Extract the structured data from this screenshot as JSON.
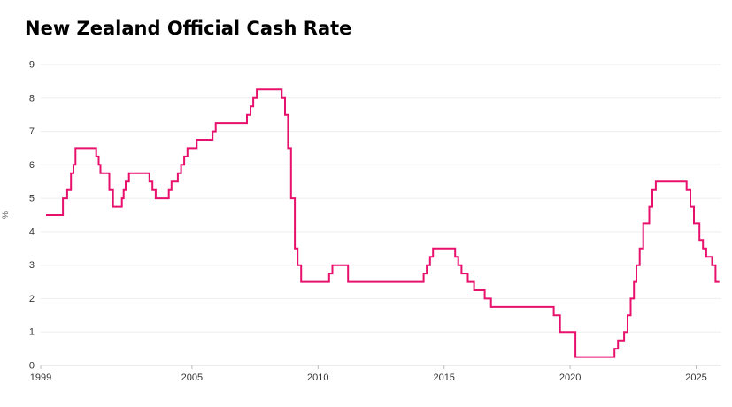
{
  "title": "New Zealand Official Cash Rate",
  "chart_data": {
    "type": "line",
    "step": true,
    "title": "New Zealand Official Cash Rate",
    "xlabel": "",
    "ylabel": "%",
    "xlim": [
      1999,
      2026
    ],
    "ylim": [
      0,
      9
    ],
    "xticks": [
      1999,
      2005,
      2010,
      2015,
      2020,
      2025
    ],
    "yticks": [
      0,
      1,
      2,
      3,
      4,
      5,
      6,
      7,
      8,
      9
    ],
    "grid": true,
    "legend": "none",
    "line_color": "#e7106c",
    "grid_color": "#ededed",
    "axis_color": "#d9d9d9",
    "series": [
      {
        "name": "Official Cash Rate (%)",
        "points": [
          [
            1999.21,
            4.5
          ],
          [
            1999.88,
            5.0
          ],
          [
            2000.05,
            5.25
          ],
          [
            2000.2,
            5.75
          ],
          [
            2000.3,
            6.0
          ],
          [
            2000.38,
            6.5
          ],
          [
            2001.2,
            6.25
          ],
          [
            2001.3,
            6.0
          ],
          [
            2001.37,
            5.75
          ],
          [
            2001.72,
            5.25
          ],
          [
            2001.87,
            4.75
          ],
          [
            2002.22,
            5.0
          ],
          [
            2002.29,
            5.25
          ],
          [
            2002.37,
            5.5
          ],
          [
            2002.5,
            5.75
          ],
          [
            2003.31,
            5.5
          ],
          [
            2003.43,
            5.25
          ],
          [
            2003.56,
            5.0
          ],
          [
            2004.08,
            5.25
          ],
          [
            2004.19,
            5.5
          ],
          [
            2004.44,
            5.75
          ],
          [
            2004.57,
            6.0
          ],
          [
            2004.69,
            6.25
          ],
          [
            2004.82,
            6.5
          ],
          [
            2005.19,
            6.75
          ],
          [
            2005.82,
            7.0
          ],
          [
            2005.94,
            7.25
          ],
          [
            2007.18,
            7.5
          ],
          [
            2007.32,
            7.75
          ],
          [
            2007.43,
            8.0
          ],
          [
            2007.57,
            8.25
          ],
          [
            2008.56,
            8.0
          ],
          [
            2008.69,
            7.5
          ],
          [
            2008.81,
            6.5
          ],
          [
            2008.93,
            5.0
          ],
          [
            2009.08,
            3.5
          ],
          [
            2009.19,
            3.0
          ],
          [
            2009.33,
            2.5
          ],
          [
            2010.44,
            2.75
          ],
          [
            2010.57,
            3.0
          ],
          [
            2011.19,
            2.5
          ],
          [
            2014.19,
            2.75
          ],
          [
            2014.31,
            3.0
          ],
          [
            2014.44,
            3.25
          ],
          [
            2014.56,
            3.5
          ],
          [
            2015.44,
            3.25
          ],
          [
            2015.56,
            3.0
          ],
          [
            2015.69,
            2.75
          ],
          [
            2015.94,
            2.5
          ],
          [
            2016.19,
            2.25
          ],
          [
            2016.61,
            2.0
          ],
          [
            2016.86,
            1.75
          ],
          [
            2019.35,
            1.5
          ],
          [
            2019.6,
            1.0
          ],
          [
            2020.21,
            0.25
          ],
          [
            2021.76,
            0.5
          ],
          [
            2021.9,
            0.75
          ],
          [
            2022.14,
            1.0
          ],
          [
            2022.28,
            1.5
          ],
          [
            2022.4,
            2.0
          ],
          [
            2022.53,
            2.5
          ],
          [
            2022.63,
            3.0
          ],
          [
            2022.76,
            3.5
          ],
          [
            2022.9,
            4.25
          ],
          [
            2023.14,
            4.75
          ],
          [
            2023.26,
            5.25
          ],
          [
            2023.4,
            5.5
          ],
          [
            2024.62,
            5.25
          ],
          [
            2024.77,
            4.75
          ],
          [
            2024.91,
            4.25
          ],
          [
            2025.13,
            3.75
          ],
          [
            2025.27,
            3.5
          ],
          [
            2025.4,
            3.25
          ],
          [
            2025.63,
            3.0
          ],
          [
            2025.77,
            2.5
          ],
          [
            2025.92,
            2.5
          ]
        ]
      }
    ]
  }
}
